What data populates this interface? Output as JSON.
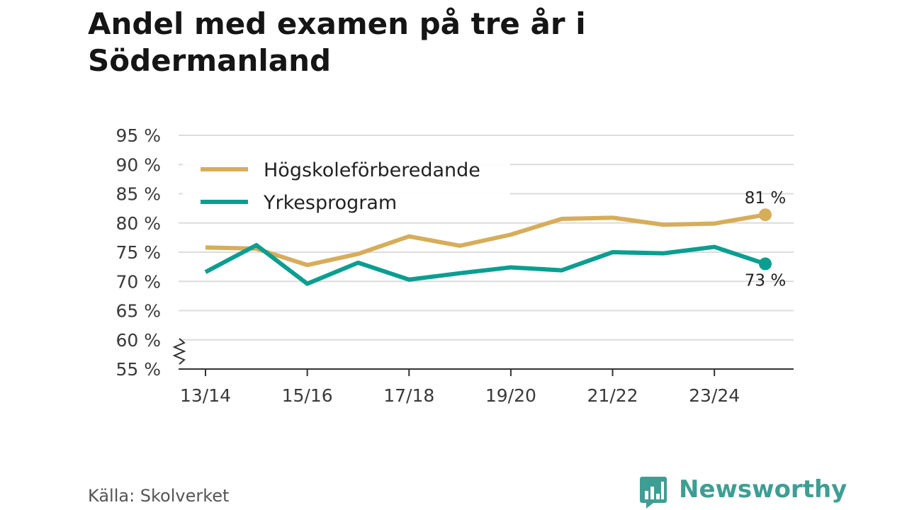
{
  "colors": {
    "series_1": "#d6ad5a",
    "series_2": "#0a9e91",
    "grid": "#dcdcdc",
    "axis": "#333333",
    "brand": "#3f9e93"
  },
  "source_text": "Källa: Skolverket",
  "brand_name": "Newsworthy",
  "brand_icon": "bar-chart-speech-bubble-icon",
  "chart_data": {
    "type": "line",
    "title": "Andel med examen på tre år i Södermanland",
    "xlabel": "",
    "ylabel": "",
    "x": [
      "13/14",
      "14/15",
      "15/16",
      "16/17",
      "17/18",
      "18/19",
      "19/20",
      "20/21",
      "21/22",
      "22/23",
      "23/24",
      "24/25"
    ],
    "x_tick_labels": [
      "13/14",
      "15/16",
      "17/18",
      "19/20",
      "21/22",
      "23/24"
    ],
    "y_tick_labels": [
      "95 %",
      "90 %",
      "85 %",
      "80 %",
      "75 %",
      "70 %",
      "65 %",
      "60 %",
      "55 %"
    ],
    "y_ticks": [
      95,
      90,
      85,
      80,
      75,
      70,
      65,
      60,
      55
    ],
    "ylim": [
      55,
      95
    ],
    "y_axis_break": true,
    "grid": true,
    "legend_position": "top-left",
    "series": [
      {
        "name": "Högskoleförberedande",
        "values": [
          75.8,
          75.6,
          72.8,
          74.7,
          77.7,
          76.1,
          78.0,
          80.7,
          80.9,
          79.7,
          79.9,
          81.4
        ],
        "end_label": "81 %"
      },
      {
        "name": "Yrkesprogram",
        "values": [
          71.6,
          76.2,
          69.6,
          73.2,
          70.3,
          71.4,
          72.4,
          71.9,
          75.0,
          74.8,
          75.9,
          73.0
        ],
        "end_label": "73 %"
      }
    ]
  }
}
